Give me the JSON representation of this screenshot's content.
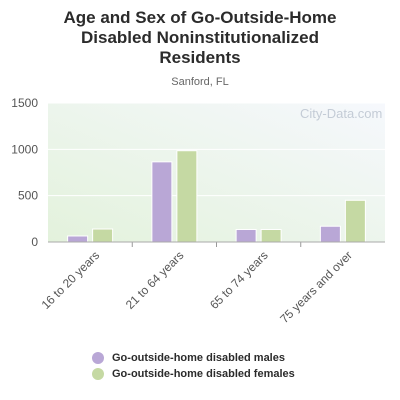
{
  "chart_data": {
    "type": "bar",
    "title": "Age and Sex of Go-Outside-Home Disabled Noninstitutionalized Residents",
    "title_lines": [
      "Age and Sex of Go-Outside-Home",
      "Disabled Noninstitutionalized",
      "Residents"
    ],
    "subtitle": "Sanford, FL",
    "categories": [
      "16 to 20 years",
      "21 to 64 years",
      "65 to 74 years",
      "75 years and over"
    ],
    "series": [
      {
        "name": "Go-outside-home disabled males",
        "color": "#b9a7d6",
        "values": [
          65,
          865,
          135,
          170
        ]
      },
      {
        "name": "Go-outside-home disabled females",
        "color": "#c5d9a3",
        "values": [
          140,
          985,
          135,
          450
        ]
      }
    ],
    "ylim": [
      0,
      1500
    ],
    "yticks": [
      "0",
      "500",
      "1000",
      "1500"
    ],
    "ytick_values": [
      0,
      500,
      1000,
      1500
    ],
    "grid": true,
    "legend_position": "bottom",
    "watermark": "City-Data.com"
  }
}
